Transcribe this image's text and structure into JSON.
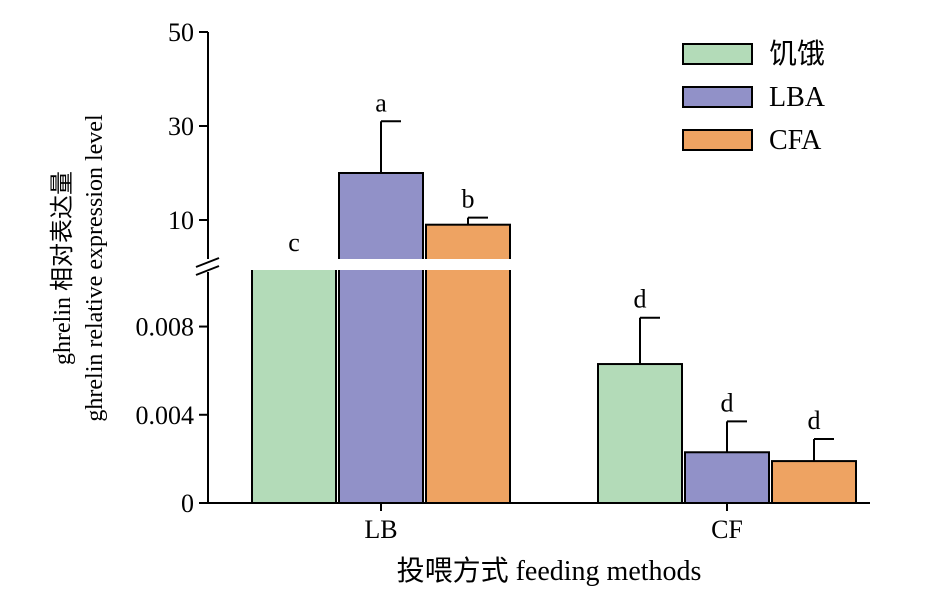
{
  "chart_data": {
    "type": "bar",
    "xlabel": "投喂方式 feeding methods",
    "ylabel_lines": [
      "ghrelin 相对表达量",
      "ghrelin relative expression level"
    ],
    "categories": [
      "LB",
      "CF"
    ],
    "y_axis_upper": {
      "range": [
        0,
        50
      ],
      "ticks": [
        "10",
        "30",
        "50"
      ]
    },
    "y_axis_lower": {
      "range": [
        0,
        0.0107
      ],
      "ticks": [
        "0",
        "0.004",
        "0.008"
      ]
    },
    "axis_break": true,
    "legend": {
      "position": "top-right"
    },
    "series": [
      {
        "name": "饥饿",
        "color": "#b3dbb8",
        "values": [
          1.0,
          0.0063
        ],
        "errors": [
          0.3,
          0.0021
        ],
        "labels": [
          "c",
          "d"
        ],
        "segments": [
          "upper",
          "lower"
        ]
      },
      {
        "name": "LBA",
        "color": "#9191c8",
        "values": [
          20.0,
          0.0023
        ],
        "errors": [
          11.0,
          0.0014
        ],
        "labels": [
          "a",
          "d"
        ],
        "segments": [
          "upper",
          "lower"
        ]
      },
      {
        "name": "CFA",
        "color": "#eea362",
        "values": [
          9.0,
          0.0019
        ],
        "errors": [
          1.5,
          0.001
        ],
        "labels": [
          "b",
          "d"
        ],
        "segments": [
          "upper",
          "lower"
        ]
      }
    ]
  }
}
